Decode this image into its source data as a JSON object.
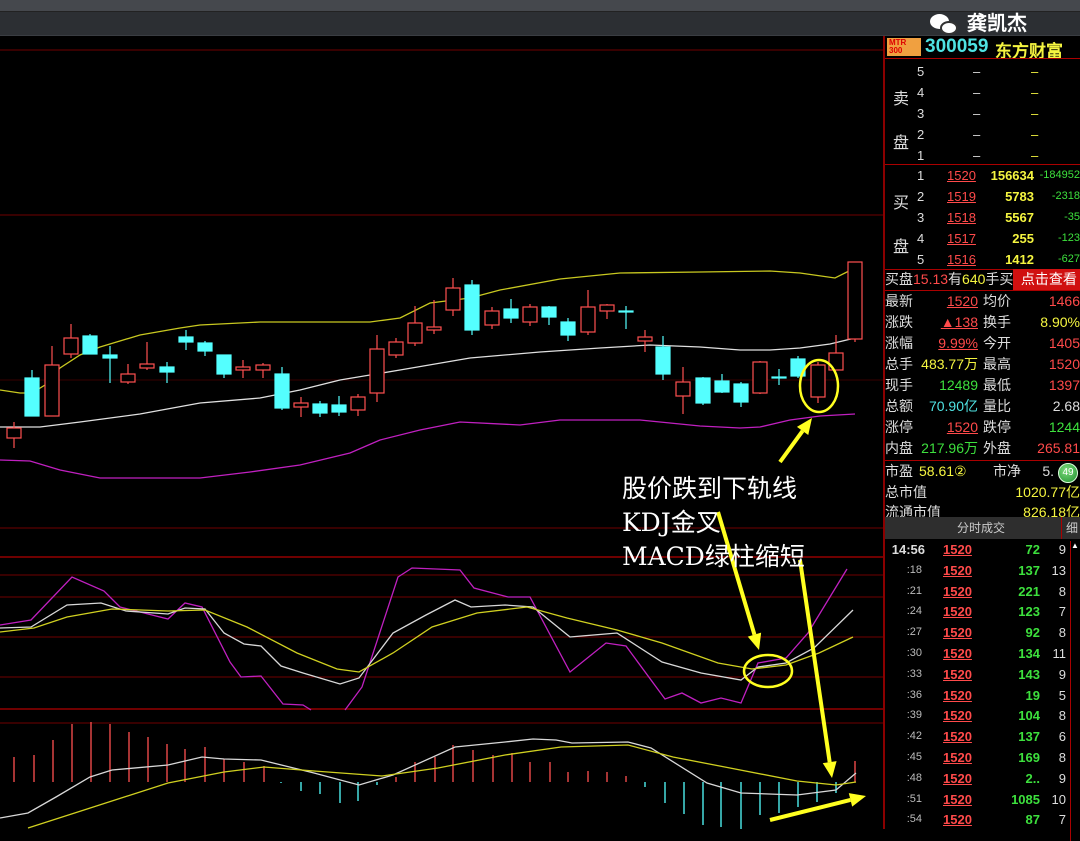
{
  "stock": {
    "logo": "MTR 300",
    "code": "300059",
    "name": "东方财富"
  },
  "sell": {
    "label": "卖盘",
    "rows": [
      {
        "level": "5",
        "price": "–",
        "vol": "–"
      },
      {
        "level": "4",
        "price": "–",
        "vol": "–"
      },
      {
        "level": "3",
        "price": "–",
        "vol": "–"
      },
      {
        "level": "2",
        "price": "–",
        "vol": "–"
      },
      {
        "level": "1",
        "price": "–",
        "vol": "–"
      }
    ]
  },
  "buy": {
    "label": "买盘",
    "rows": [
      {
        "level": "1",
        "price": "1520",
        "vol": "156634",
        "chg": "-184952"
      },
      {
        "level": "2",
        "price": "1519",
        "vol": "5783",
        "chg": "-2318"
      },
      {
        "level": "3",
        "price": "1518",
        "vol": "5567",
        "chg": "-35"
      },
      {
        "level": "4",
        "price": "1517",
        "vol": "255",
        "chg": "-123"
      },
      {
        "level": "5",
        "price": "1516",
        "vol": "1412",
        "chg": "-627"
      }
    ]
  },
  "bid_queue": {
    "label": "买盘",
    "price": "15.13",
    "has": "有",
    "qty": "640",
    "unit": "手买",
    "button": "点击查看"
  },
  "quote": [
    {
      "l1": "最新",
      "v1": "1520",
      "c1": "red",
      "l2": "均价",
      "v2": "1466",
      "c2": "red"
    },
    {
      "l1": "涨跌",
      "v1": "▲138",
      "c1": "red",
      "l2": "换手",
      "v2": "8.90%",
      "c2": "yel"
    },
    {
      "l1": "涨幅",
      "v1": "9.99%",
      "c1": "red",
      "l2": "今开",
      "v2": "1405",
      "c2": "red"
    },
    {
      "l1": "总手",
      "v1": "483.77万",
      "c1": "yel",
      "l2": "最高",
      "v2": "1520",
      "c2": "red"
    },
    {
      "l1": "现手",
      "v1": "12489",
      "c1": "grn",
      "l2": "最低",
      "v2": "1397",
      "c2": "red"
    },
    {
      "l1": "总额",
      "v1": "70.90亿",
      "c1": "cyan",
      "l2": "量比",
      "v2": "2.68",
      "c2": "wht"
    },
    {
      "l1": "涨停",
      "v1": "1520",
      "c1": "red",
      "l2": "跌停",
      "v2": "1244",
      "c2": "grn"
    },
    {
      "l1": "内盘",
      "v1": "217.96万",
      "c1": "grn",
      "l2": "外盘",
      "v2": "265.81",
      "c2": "red"
    }
  ],
  "valuation": {
    "pe_label": "市盈",
    "pe": "58.61②",
    "pb_label": "市净",
    "pb": "5.",
    "mcap_label": "总市值",
    "mcap": "1020.77亿",
    "float_label": "流通市值",
    "float": "826.18亿"
  },
  "ticks": {
    "tab": "分时成交",
    "detail_tab": "细",
    "rows": [
      {
        "t": "14:56",
        "p": "1520",
        "v": "72",
        "n": "9"
      },
      {
        "t": ":18",
        "p": "1520",
        "v": "137",
        "n": "13"
      },
      {
        "t": ":21",
        "p": "1520",
        "v": "221",
        "n": "8"
      },
      {
        "t": ":24",
        "p": "1520",
        "v": "123",
        "n": "7"
      },
      {
        "t": ":27",
        "p": "1520",
        "v": "92",
        "n": "8"
      },
      {
        "t": ":30",
        "p": "1520",
        "v": "134",
        "n": "11"
      },
      {
        "t": ":33",
        "p": "1520",
        "v": "143",
        "n": "9"
      },
      {
        "t": ":36",
        "p": "1520",
        "v": "19",
        "n": "5"
      },
      {
        "t": ":39",
        "p": "1520",
        "v": "104",
        "n": "8"
      },
      {
        "t": ":42",
        "p": "1520",
        "v": "137",
        "n": "6"
      },
      {
        "t": ":45",
        "p": "1520",
        "v": "169",
        "n": "8"
      },
      {
        "t": ":48",
        "p": "1520",
        "v": "2..",
        "n": "9"
      },
      {
        "t": ":51",
        "p": "1520",
        "v": "1085",
        "n": "10"
      },
      {
        "t": ":54",
        "p": "1520",
        "v": "87",
        "n": "7"
      }
    ]
  },
  "badge": "49",
  "annotations": [
    "股价跌到下轨线",
    "KDJ金叉",
    "MACD绿柱缩短"
  ],
  "watermark": "龚凯杰",
  "colors": {
    "up": "#ff5050",
    "down": "#54ffff",
    "upper_band": "#c8c820",
    "mid_band": "#e0e0e0",
    "lower_band": "#c020c0",
    "annotation": "#ffff20",
    "grid": "#8b0000"
  }
}
